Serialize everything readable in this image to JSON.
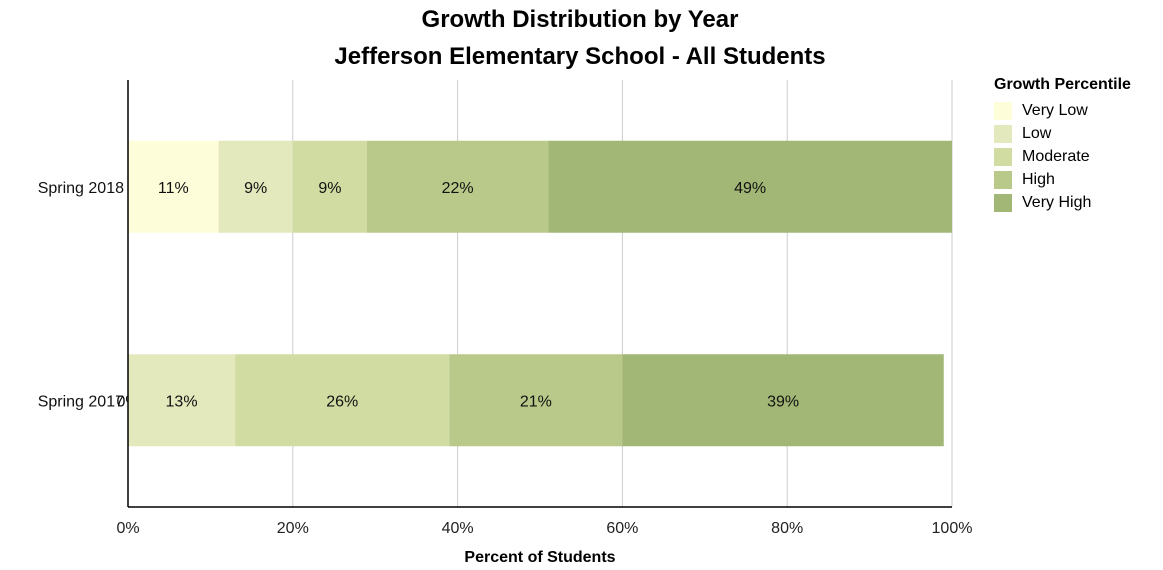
{
  "chart_data": {
    "type": "bar",
    "orientation": "horizontal",
    "stacked": true,
    "title": "Growth Distribution by Year",
    "subtitle": "Jefferson Elementary School - All Students",
    "xlabel": "Percent of Students",
    "ylabel": "",
    "xlim": [
      0,
      100
    ],
    "x_ticks": [
      "0%",
      "20%",
      "40%",
      "60%",
      "80%",
      "100%"
    ],
    "grid": true,
    "legend_title": "Growth Percentile",
    "legend_position": "right",
    "categories": [
      "Spring 2018",
      "Spring 2017"
    ],
    "series": [
      {
        "name": "Very Low",
        "color": "#fefdd9",
        "values": [
          11,
          0
        ],
        "labels": [
          "11%",
          "0%"
        ]
      },
      {
        "name": "Low",
        "color": "#e3e9bd",
        "values": [
          9,
          13
        ],
        "labels": [
          "9%",
          "13%"
        ]
      },
      {
        "name": "Moderate",
        "color": "#d0dca2",
        "values": [
          9,
          26
        ],
        "labels": [
          "9%",
          "26%"
        ]
      },
      {
        "name": "High",
        "color": "#b9c98a",
        "values": [
          22,
          21
        ],
        "labels": [
          "22%",
          "21%"
        ]
      },
      {
        "name": "Very High",
        "color": "#a2b775",
        "values": [
          49,
          39
        ],
        "labels": [
          "49%",
          "39%"
        ]
      }
    ]
  }
}
